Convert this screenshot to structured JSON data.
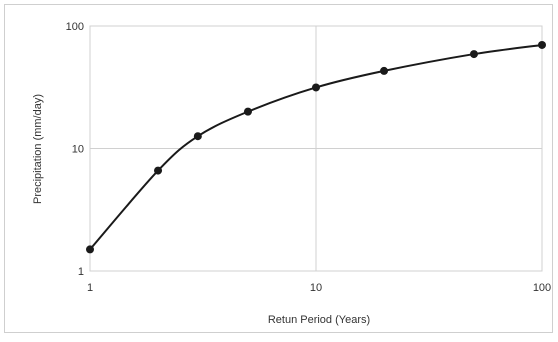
{
  "chart_data": {
    "type": "line",
    "xscale": "log",
    "yscale": "log",
    "xlim": [
      1,
      100
    ],
    "ylim": [
      1,
      100
    ],
    "xticks": [
      "1",
      "10",
      "100"
    ],
    "yticks": [
      "1",
      "10",
      "100"
    ],
    "xlabel": "Retun Period (Years)",
    "ylabel": "Precipitation (mm/day)",
    "grid": true,
    "line_color": "#1a1a1a",
    "marker": "circle",
    "series": [
      {
        "x": [
          1,
          2,
          3,
          5,
          10,
          20,
          50,
          100
        ],
        "values": [
          1.5,
          6.6,
          12.6,
          20,
          31.5,
          43,
          59,
          70
        ]
      }
    ]
  }
}
